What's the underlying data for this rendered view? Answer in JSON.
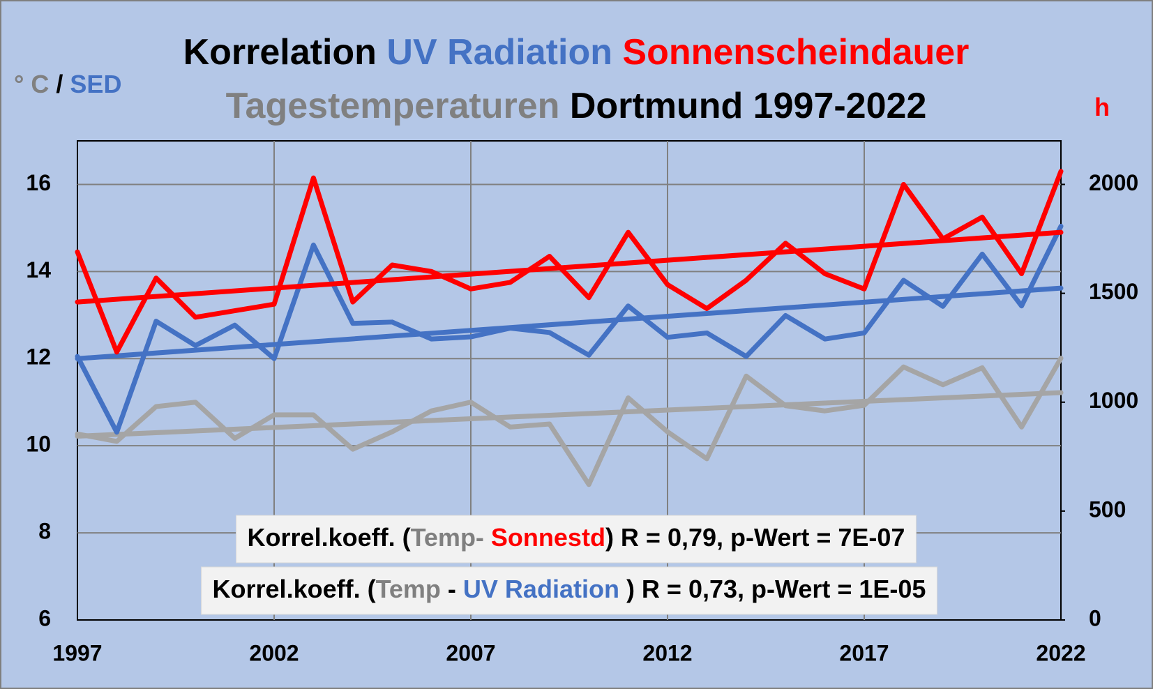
{
  "chart_data": {
    "type": "line",
    "title": [
      [
        {
          "text": "Korrelation ",
          "color": "#000000"
        },
        {
          "text": "UV Radiation",
          "color": "#4472c4"
        },
        {
          "text": " Sonnenscheindauer",
          "color": "#ff0000"
        }
      ],
      [
        {
          "text": "Tagestemperaturen",
          "color": "#808080"
        },
        {
          "text": " Dortmund 1997-2022",
          "color": "#000000"
        }
      ]
    ],
    "y_label": [
      {
        "text": "° C",
        "color": "#808080"
      },
      {
        "text": " / ",
        "color": "#000000"
      },
      {
        "text": "SED",
        "color": "#4472c4"
      }
    ],
    "y2_label": [
      {
        "text": "h",
        "color": "#ff0000"
      }
    ],
    "annotations": [
      [
        {
          "text": "Korrel.koeff. (",
          "color": "#000000"
        },
        {
          "text": "Temp-",
          "color": "#808080"
        },
        {
          "text": " Sonnestd",
          "color": "#ff0000"
        },
        {
          "text": ") R = 0,79, p-Wert = 7E-07",
          "color": "#000000"
        }
      ],
      [
        {
          "text": "Korrel.koeff. (",
          "color": "#000000"
        },
        {
          "text": "Temp",
          "color": "#808080"
        },
        {
          "text": " - ",
          "color": "#000000"
        },
        {
          "text": "UV Radiation",
          "color": "#4472c4"
        },
        {
          "text": " ) R = 0,73, p-Wert = 1E-05",
          "color": "#000000"
        }
      ]
    ],
    "x": [
      1997,
      1998,
      1999,
      2000,
      2001,
      2002,
      2003,
      2004,
      2005,
      2006,
      2007,
      2008,
      2009,
      2010,
      2011,
      2012,
      2013,
      2014,
      2015,
      2016,
      2017,
      2018,
      2019,
      2020,
      2021,
      2022
    ],
    "xlim": [
      1997,
      2022
    ],
    "xticks": [
      1997,
      2002,
      2007,
      2012,
      2017,
      2022
    ],
    "ylim": [
      6,
      17
    ],
    "yticks": [
      6,
      8,
      10,
      12,
      14,
      16
    ],
    "y2lim": [
      0,
      2200
    ],
    "y2ticks": [
      0,
      500,
      1000,
      1500,
      2000
    ],
    "grid": true,
    "series": [
      {
        "color": "#a5a5a5",
        "values": [
          10.27,
          10.1,
          10.9,
          11.0,
          10.17,
          10.71,
          10.71,
          9.92,
          10.32,
          10.8,
          11.0,
          10.43,
          10.5,
          9.11,
          11.1,
          10.32,
          9.7,
          11.6,
          10.92,
          10.8,
          10.93,
          11.81,
          11.4,
          11.79,
          10.43,
          12.01
        ],
        "trend": [
          10.22,
          11.22
        ]
      },
      {
        "color": "#4472c4",
        "values": [
          12.05,
          10.31,
          12.86,
          12.3,
          12.77,
          12.0,
          14.61,
          12.81,
          12.84,
          12.45,
          12.5,
          12.7,
          12.6,
          12.08,
          13.21,
          12.49,
          12.59,
          12.05,
          12.99,
          12.45,
          12.59,
          13.8,
          13.2,
          14.4,
          13.21,
          15.04
        ],
        "trend": [
          12.0,
          13.62
        ]
      },
      {
        "color": "#ff0000",
        "axis": "y2",
        "values": [
          1690,
          1230,
          1570,
          1390,
          1420,
          1450,
          2030,
          1460,
          1630,
          1600,
          1520,
          1550,
          1670,
          1480,
          1780,
          1540,
          1430,
          1560,
          1730,
          1590,
          1520,
          2000,
          1750,
          1850,
          1590,
          2060
        ],
        "trend": [
          1460,
          1780
        ]
      }
    ]
  }
}
